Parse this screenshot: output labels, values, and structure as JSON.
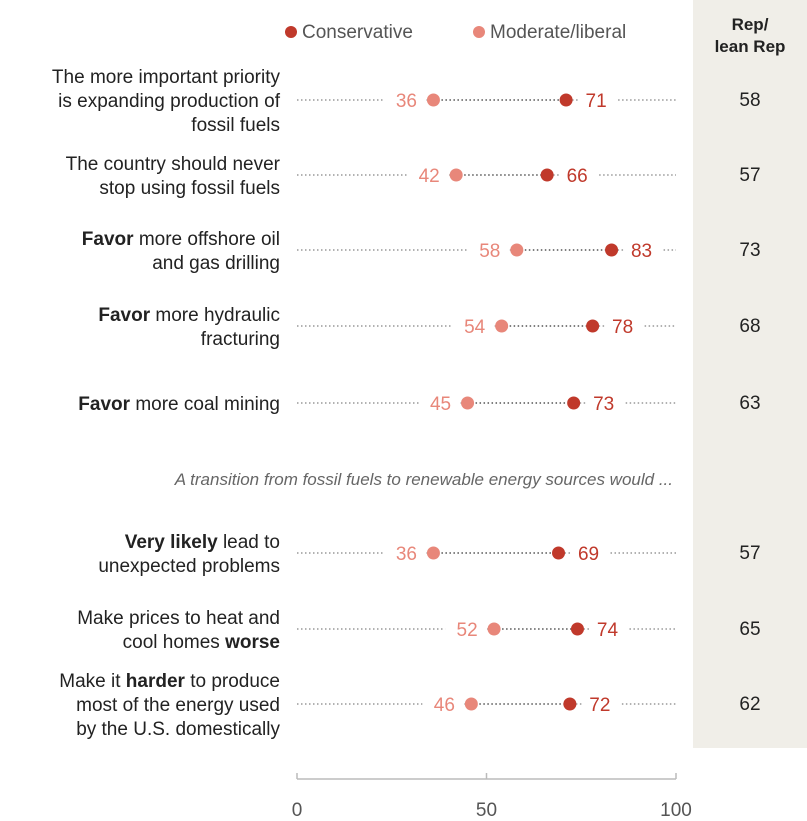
{
  "legend": {
    "conservative": "Conservative",
    "moderate": "Moderate/liberal"
  },
  "rep_header": [
    "Rep/",
    "lean Rep"
  ],
  "section_note": "A transition from fossil fuels to renewable energy sources would ...",
  "colors": {
    "conservative": "#c0392b",
    "moderate": "#e8877a",
    "rep_column_bg": "#f0eee8",
    "dotted_line": "#999999"
  },
  "chart_data": {
    "type": "dot",
    "xlim": [
      0,
      100
    ],
    "xticks": [
      "0",
      "50",
      "100"
    ],
    "series": [
      {
        "name": "Conservative",
        "key": "conservative"
      },
      {
        "name": "Moderate/liberal",
        "key": "moderate"
      }
    ],
    "rows": [
      {
        "label": [
          [
            {
              "t": "The more important priority"
            }
          ],
          [
            {
              "t": "is expanding production of"
            }
          ],
          [
            {
              "t": "fossil fuels"
            }
          ]
        ],
        "conservative": 71,
        "moderate": 36,
        "rep": "58"
      },
      {
        "label": [
          [
            {
              "t": "The country should never"
            }
          ],
          [
            {
              "t": "stop using fossil fuels"
            }
          ]
        ],
        "conservative": 66,
        "moderate": 42,
        "rep": "57"
      },
      {
        "label": [
          [
            {
              "t": "Favor",
              "b": true
            },
            {
              "t": " more offshore oil"
            }
          ],
          [
            {
              "t": "and gas drilling"
            }
          ]
        ],
        "conservative": 83,
        "moderate": 58,
        "rep": "73"
      },
      {
        "label": [
          [
            {
              "t": "Favor",
              "b": true
            },
            {
              "t": " more hydraulic"
            }
          ],
          [
            {
              "t": "fracturing"
            }
          ]
        ],
        "conservative": 78,
        "moderate": 54,
        "rep": "68"
      },
      {
        "label": [
          [
            {
              "t": "Favor",
              "b": true
            },
            {
              "t": " more coal mining"
            }
          ]
        ],
        "conservative": 73,
        "moderate": 45,
        "rep": "63"
      },
      {
        "label": [
          [
            {
              "t": "Very likely",
              "b": true
            },
            {
              "t": " lead to"
            }
          ],
          [
            {
              "t": "unexpected problems"
            }
          ]
        ],
        "conservative": 69,
        "moderate": 36,
        "rep": "57"
      },
      {
        "label": [
          [
            {
              "t": "Make prices to heat and"
            }
          ],
          [
            {
              "t": "cool homes "
            },
            {
              "t": "worse",
              "b": true
            }
          ]
        ],
        "conservative": 74,
        "moderate": 52,
        "rep": "65"
      },
      {
        "label": [
          [
            {
              "t": "Make it "
            },
            {
              "t": "harder",
              "b": true
            },
            {
              "t": " to produce"
            }
          ],
          [
            {
              "t": "most of the energy used"
            }
          ],
          [
            {
              "t": "by the U.S. domestically"
            }
          ]
        ],
        "conservative": 72,
        "moderate": 46,
        "rep": "62"
      }
    ]
  }
}
